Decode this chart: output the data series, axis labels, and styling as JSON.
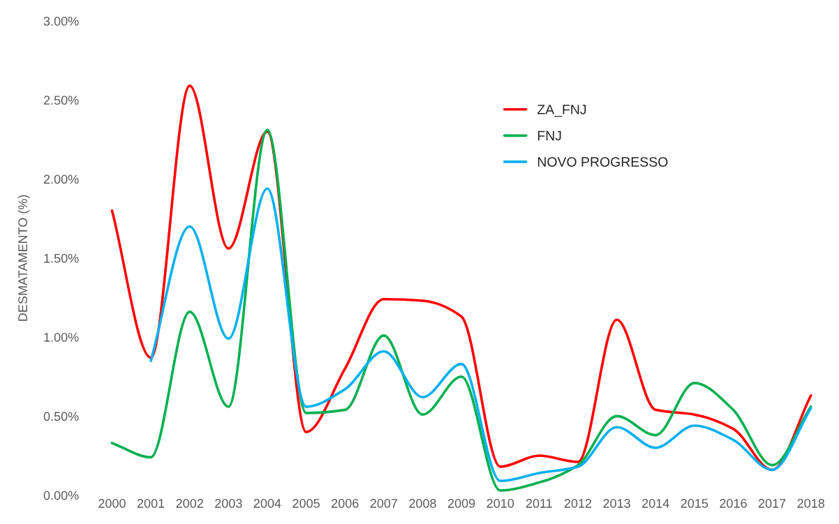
{
  "chart_data": {
    "type": "line",
    "ylabel": "DESMATAMENTO (%)",
    "categories": [
      "2000",
      "2001",
      "2002",
      "2003",
      "2004",
      "2005",
      "2006",
      "2007",
      "2008",
      "2009",
      "2010",
      "2011",
      "2012",
      "2013",
      "2014",
      "2015",
      "2016",
      "2017",
      "2018"
    ],
    "series": [
      {
        "name": "ZA_FNJ",
        "color": "#ff0000",
        "values": [
          1.8,
          0.87,
          2.59,
          1.56,
          2.3,
          0.4,
          0.8,
          1.24,
          1.23,
          1.13,
          0.18,
          0.25,
          0.21,
          1.11,
          0.54,
          0.51,
          0.42,
          0.16,
          0.63
        ]
      },
      {
        "name": "FNJ",
        "color": "#00b050",
        "values": [
          0.33,
          0.24,
          1.16,
          0.56,
          2.31,
          0.52,
          0.54,
          1.01,
          0.51,
          0.75,
          0.03,
          0.08,
          0.19,
          0.5,
          0.38,
          0.71,
          0.54,
          0.19,
          0.56
        ]
      },
      {
        "name": "NOVO PROGRESSO",
        "color": "#00b0f0",
        "values": [
          null,
          0.85,
          1.7,
          0.99,
          1.94,
          0.56,
          0.67,
          0.91,
          0.62,
          0.83,
          0.09,
          0.14,
          0.18,
          0.43,
          0.3,
          0.44,
          0.35,
          0.16,
          0.55
        ]
      }
    ],
    "ylim": [
      0,
      3
    ],
    "yticks": [
      {
        "value": 0,
        "label": "0.00%"
      },
      {
        "value": 0.5,
        "label": "0.50%"
      },
      {
        "value": 1,
        "label": "1.00%"
      },
      {
        "value": 1.5,
        "label": "1.50%"
      },
      {
        "value": 2,
        "label": "2.00%"
      },
      {
        "value": 2.5,
        "label": "2.50%"
      },
      {
        "value": 3,
        "label": "3.00%"
      }
    ],
    "grid": false,
    "legend": "top right",
    "marker": "none",
    "line_style": "solid"
  }
}
